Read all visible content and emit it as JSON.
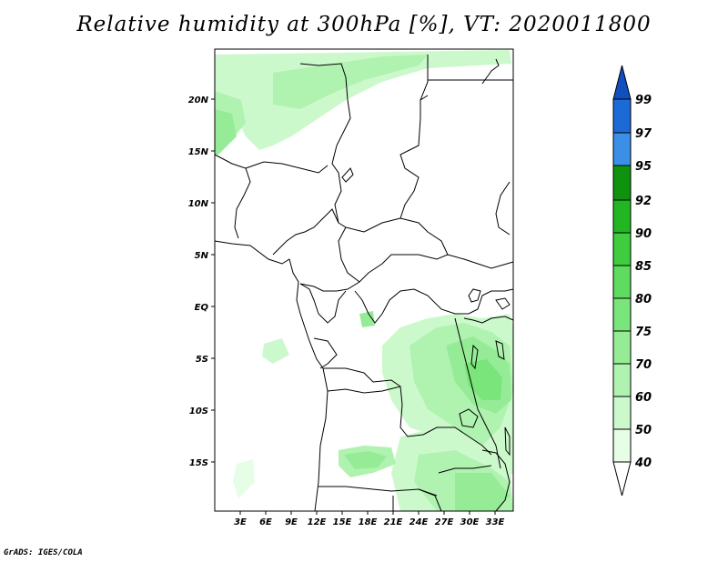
{
  "title": "Relative humidity at 300hPa [%], VT: 2020011800",
  "credit": "GrADS: IGES/COLA",
  "map": {
    "lat_ticks": [
      "20N",
      "15N",
      "10N",
      "5N",
      "EQ",
      "5S",
      "10S",
      "15S"
    ],
    "lon_ticks": [
      "3E",
      "6E",
      "9E",
      "12E",
      "15E",
      "18E",
      "21E",
      "24E",
      "27E",
      "30E",
      "33E"
    ]
  },
  "colorbar": {
    "levels": [
      "40",
      "50",
      "60",
      "70",
      "75",
      "80",
      "85",
      "90",
      "92",
      "95",
      "97",
      "99"
    ],
    "colors": [
      "#ffffff",
      "#e6fde6",
      "#ccf9cc",
      "#b0f2b0",
      "#96ec96",
      "#7ae57a",
      "#5fdc5f",
      "#3fcd3f",
      "#23b623",
      "#0f930f",
      "#3b8fe6",
      "#1c6ad6",
      "#0f4fc0"
    ]
  }
}
